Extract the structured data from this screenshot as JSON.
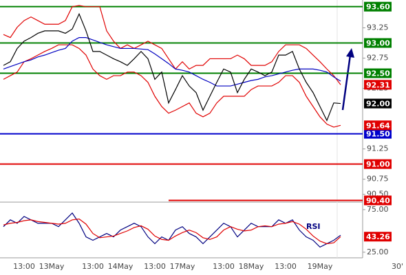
{
  "chart_data": [
    {
      "type": "line",
      "categories": [
        null,
        null,
        null,
        "13:00",
        null,
        null,
        null,
        "13May",
        null,
        null,
        null,
        null,
        null,
        "13:00",
        null,
        null,
        null,
        "14May",
        null,
        null,
        null,
        null,
        "13:00",
        null,
        null,
        null,
        "17May",
        null,
        null,
        null,
        null,
        null,
        "13:00",
        null,
        null,
        null,
        "18May",
        null,
        null,
        null,
        null,
        "13:00",
        null,
        null,
        null,
        null,
        "19May",
        null,
        null,
        null
      ],
      "x_unit": "30'",
      "ylim": [
        90.36,
        93.71
      ],
      "yticks": [
        93.25,
        92.75,
        92.25,
        91.25,
        90.75,
        {
          "value": 90.5,
          "label": "90.50"
        }
      ],
      "levels": [
        {
          "value": 93.6,
          "label": "93.60",
          "color": "#008000"
        },
        {
          "value": 93.0,
          "label": "93.00",
          "color": "#008000"
        },
        {
          "value": 92.5,
          "label": "92.50",
          "color": "#008000"
        },
        {
          "value": 91.5,
          "label": "91.50",
          "color": "#0000cc"
        },
        {
          "value": 91.0,
          "label": "91.00",
          "color": "#e00000"
        },
        {
          "value": 90.4,
          "label": "90.40",
          "color": "#e00000",
          "start_index": 24
        }
      ],
      "series": [
        {
          "color": "#e00000",
          "values": [
            93.14,
            93.09,
            93.26,
            93.37,
            93.43,
            93.37,
            93.31,
            93.31,
            93.31,
            93.37,
            93.6,
            93.62,
            93.6,
            93.6,
            93.6,
            93.2,
            93.03,
            92.91,
            92.97,
            92.91,
            92.97,
            93.03,
            92.97,
            92.91,
            92.74,
            92.57,
            92.69,
            92.57,
            92.63,
            92.63,
            92.74,
            92.74,
            92.74,
            92.74,
            92.8,
            92.74,
            92.63,
            92.63,
            92.63,
            92.69,
            92.86,
            92.97,
            92.97,
            92.97,
            92.91,
            92.8,
            92.69,
            92.57,
            92.46,
            92.31
          ],
          "last_label": "92.31"
        },
        {
          "color": "#e00000",
          "values": [
            92.4,
            92.46,
            92.52,
            92.69,
            92.74,
            92.8,
            92.86,
            92.91,
            92.97,
            92.97,
            92.97,
            92.91,
            92.8,
            92.57,
            92.46,
            92.4,
            92.46,
            92.46,
            92.52,
            92.52,
            92.46,
            92.35,
            92.12,
            91.95,
            91.84,
            91.89,
            91.95,
            92.01,
            91.84,
            91.78,
            91.84,
            92.01,
            92.12,
            92.12,
            92.12,
            92.12,
            92.23,
            92.29,
            92.29,
            92.29,
            92.35,
            92.46,
            92.46,
            92.35,
            92.12,
            91.95,
            91.78,
            91.66,
            91.61,
            91.64
          ],
          "last_label": "91.64"
        },
        {
          "color": "#0000c0",
          "values": [
            92.57,
            92.61,
            92.65,
            92.69,
            92.72,
            92.77,
            92.8,
            92.84,
            92.88,
            92.91,
            93.03,
            93.09,
            93.09,
            93.05,
            93.01,
            92.97,
            92.94,
            92.91,
            92.91,
            92.91,
            92.9,
            92.89,
            92.82,
            92.74,
            92.66,
            92.57,
            92.55,
            92.52,
            92.46,
            92.4,
            92.35,
            92.29,
            92.29,
            92.29,
            92.32,
            92.35,
            92.38,
            92.4,
            92.44,
            92.46,
            92.49,
            92.52,
            92.55,
            92.57,
            92.57,
            92.57,
            92.55,
            92.52,
            92.44,
            92.37
          ]
        },
        {
          "color": "#000000",
          "values": [
            92.63,
            92.69,
            92.91,
            93.03,
            93.09,
            93.16,
            93.2,
            93.2,
            93.2,
            93.16,
            93.23,
            93.48,
            93.2,
            92.86,
            92.86,
            92.8,
            92.74,
            92.69,
            92.63,
            92.74,
            92.86,
            92.74,
            92.4,
            92.52,
            92.01,
            92.23,
            92.46,
            92.29,
            92.18,
            91.89,
            92.12,
            92.35,
            92.57,
            92.52,
            92.18,
            92.4,
            92.57,
            92.52,
            92.46,
            92.52,
            92.8,
            92.8,
            92.86,
            92.57,
            92.35,
            92.18,
            91.95,
            91.72,
            92.01,
            92.0
          ],
          "last_label": "92.00"
        }
      ]
    },
    {
      "type": "line",
      "title": "RSI",
      "ylim": [
        16,
        83
      ],
      "yticks": [
        {
          "value": 75,
          "label": "75.00"
        },
        {
          "value": 25,
          "label": "25.00"
        }
      ],
      "series": [
        {
          "color": "#000080",
          "values": [
            55,
            63,
            59,
            67,
            63,
            59,
            59,
            59,
            55,
            63,
            71,
            59,
            43,
            39,
            43,
            47,
            43,
            51,
            55,
            59,
            55,
            43,
            35,
            43,
            39,
            51,
            55,
            47,
            43,
            35,
            43,
            51,
            59,
            55,
            43,
            51,
            59,
            55,
            55,
            55,
            63,
            59,
            63,
            51,
            43,
            39,
            31,
            35,
            39,
            45
          ]
        },
        {
          "color": "#e00000",
          "values": [
            57,
            59,
            60,
            62,
            63,
            61,
            60,
            59,
            58,
            59,
            63,
            64,
            58,
            47,
            42,
            43,
            44,
            47,
            50,
            54,
            56,
            52,
            44,
            40,
            39,
            44,
            48,
            51,
            48,
            42,
            40,
            43,
            51,
            55,
            52,
            50,
            51,
            55,
            56,
            55,
            58,
            59,
            61,
            58,
            52,
            44,
            38,
            35,
            36,
            43.26
          ],
          "last_label": "43.26"
        }
      ]
    }
  ]
}
